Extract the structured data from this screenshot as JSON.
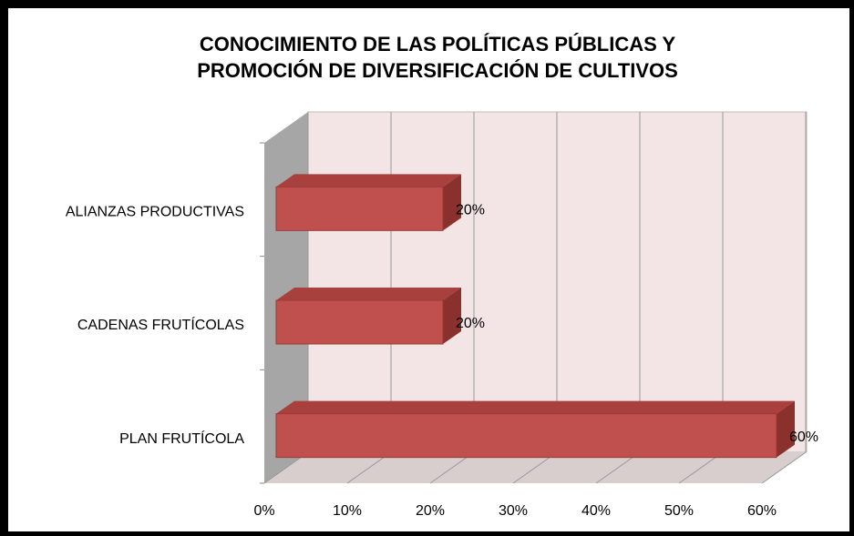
{
  "chart_data": {
    "type": "bar3d_horizontal",
    "title": [
      "CONOCIMIENTO DE LAS POLÍTICAS PÚBLICAS Y",
      "PROMOCIÓN DE DIVERSIFICACIÓN DE CULTIVOS"
    ],
    "categories": [
      "ALIANZAS PRODUCTIVAS",
      "CADENAS FRUTÍCOLAS",
      "PLAN FRUTÍCOLA"
    ],
    "values": [
      20,
      20,
      60
    ],
    "value_labels": [
      "20%",
      "20%",
      "60%"
    ],
    "color": "#c0504d",
    "xlim": [
      0,
      60
    ],
    "xticks": [
      {
        "value": 0,
        "label": "0%"
      },
      {
        "value": 10,
        "label": "10%"
      },
      {
        "value": 20,
        "label": "20%"
      },
      {
        "value": 30,
        "label": "30%"
      },
      {
        "value": 40,
        "label": "40%"
      },
      {
        "value": 50,
        "label": "50%"
      },
      {
        "value": 60,
        "label": "60%"
      }
    ],
    "grid": true
  }
}
